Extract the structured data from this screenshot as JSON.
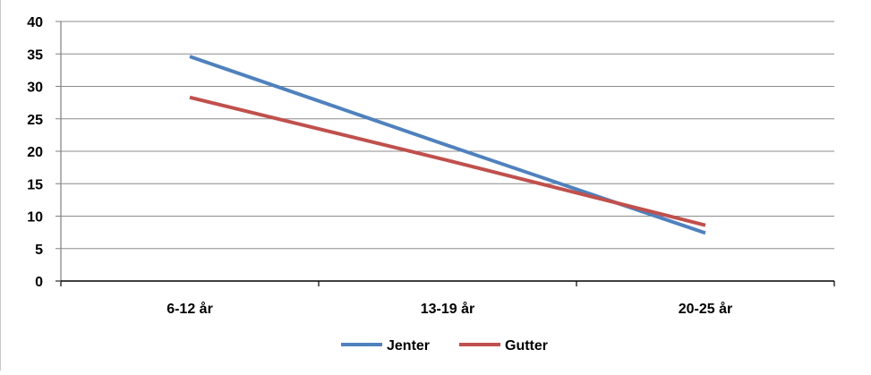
{
  "chart_data": {
    "type": "line",
    "title": "",
    "xlabel": "",
    "ylabel": "",
    "categories": [
      "6-12 år",
      "13-19 år",
      "20-25 år"
    ],
    "ylim": [
      0,
      40
    ],
    "yticks": [
      0,
      5,
      10,
      15,
      20,
      25,
      30,
      35,
      40
    ],
    "grid": true,
    "legend_position": "bottom",
    "series": [
      {
        "name": "Jenter",
        "color": "#4F81BD",
        "values": [
          34.6,
          20.9,
          7.4
        ]
      },
      {
        "name": "Gutter",
        "color": "#C0504D",
        "values": [
          28.3,
          18.6,
          8.6
        ]
      }
    ]
  }
}
